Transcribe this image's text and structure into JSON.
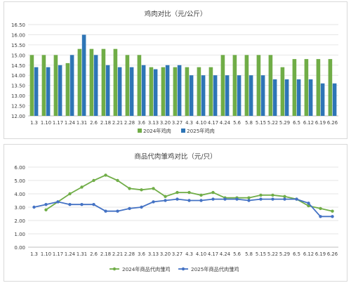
{
  "chart_data": [
    {
      "type": "bar",
      "title": "鸡肉对比（元/公斤）",
      "categories": [
        "1.3",
        "1.10",
        "1.17",
        "1.24",
        "1.31",
        "2.6",
        "2.18",
        "2.21",
        "2.28",
        "3.6",
        "3.13",
        "3.20",
        "3.27",
        "4.3",
        "4.10",
        "4.17",
        "4.24",
        "5.6",
        "5.8",
        "5.15",
        "5.22",
        "5.29",
        "6.5",
        "6.12",
        "6.19",
        "6.26"
      ],
      "y_ticks": [
        "12.00",
        "12.50",
        "13.00",
        "13.50",
        "14.00",
        "14.50",
        "15.00",
        "15.50",
        "16.00",
        "16.50"
      ],
      "ylim": [
        12,
        16.5
      ],
      "grid": true,
      "legend_position": "bottom",
      "series": [
        {
          "name": "2024年鸡肉",
          "color": "#70ad47",
          "values": [
            15.0,
            15.0,
            15.0,
            14.6,
            15.3,
            15.3,
            15.3,
            15.3,
            15.0,
            15.0,
            14.4,
            14.4,
            14.4,
            14.4,
            14.4,
            14.4,
            15.0,
            15.0,
            15.0,
            15.0,
            15.0,
            14.4,
            14.8,
            14.8,
            14.8,
            14.8
          ]
        },
        {
          "name": "2025年鸡肉",
          "color": "#2e75b6",
          "values": [
            14.4,
            14.4,
            14.5,
            15.0,
            16.0,
            15.0,
            14.5,
            14.4,
            14.4,
            14.5,
            14.3,
            14.5,
            14.5,
            14.0,
            14.0,
            14.0,
            14.0,
            14.0,
            14.0,
            14.0,
            13.8,
            13.8,
            13.8,
            13.8,
            13.6,
            13.6
          ]
        }
      ]
    },
    {
      "type": "line",
      "title": "商品代肉雏鸡对比（元/只）",
      "categories": [
        "1.3",
        "1.10",
        "1.17",
        "1.24",
        "1.31",
        "2.6",
        "2.18",
        "2.21",
        "2.28",
        "3.6",
        "3.13",
        "3.20",
        "3.27",
        "4.3",
        "4.10",
        "4.17",
        "4.24",
        "5.6",
        "5.8",
        "5.15",
        "5.22",
        "5.29",
        "6.5",
        "6.12",
        "6.19",
        "6.26"
      ],
      "y_ticks": [
        "0.00",
        "1.00",
        "2.00",
        "3.00",
        "4.00",
        "5.00",
        "6.00"
      ],
      "ylim": [
        0,
        6
      ],
      "grid": true,
      "legend_position": "bottom",
      "series": [
        {
          "name": "2024年商品代肉雏鸡",
          "color": "#70ad47",
          "values": [
            null,
            2.8,
            3.4,
            4.0,
            4.5,
            5.0,
            5.4,
            5.0,
            4.4,
            4.3,
            4.4,
            3.8,
            4.1,
            4.1,
            3.9,
            4.1,
            3.7,
            3.7,
            3.7,
            3.9,
            3.9,
            3.8,
            3.6,
            3.1,
            2.9,
            2.7
          ]
        },
        {
          "name": "2025年商品代肉雏鸡",
          "color": "#4472c4",
          "values": [
            3.0,
            3.2,
            3.4,
            3.2,
            3.2,
            3.2,
            2.7,
            2.7,
            2.9,
            3.0,
            3.4,
            3.5,
            3.6,
            3.5,
            3.5,
            3.6,
            3.6,
            3.6,
            3.5,
            3.6,
            3.6,
            3.6,
            3.6,
            3.3,
            2.3,
            2.3
          ]
        }
      ]
    }
  ]
}
